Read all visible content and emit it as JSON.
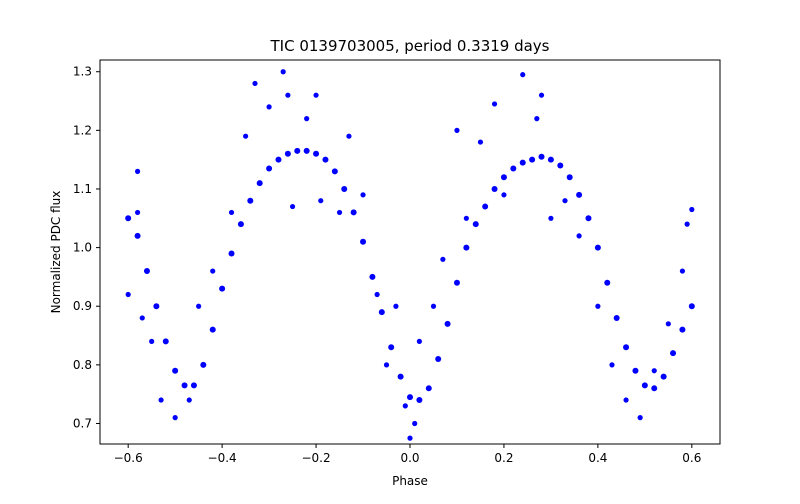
{
  "chart_data": {
    "type": "scatter",
    "title": "TIC 0139703005, period 0.3319 days",
    "xlabel": "Phase",
    "ylabel": "Normalized PDC flux",
    "xlim": [
      -0.66,
      0.66
    ],
    "ylim": [
      0.665,
      1.32
    ],
    "x_ticks": [
      {
        "value": -0.6,
        "label": "−0.6"
      },
      {
        "value": -0.4,
        "label": "−0.4"
      },
      {
        "value": -0.2,
        "label": "−0.2"
      },
      {
        "value": 0.0,
        "label": "0.0"
      },
      {
        "value": 0.2,
        "label": "0.2"
      },
      {
        "value": 0.4,
        "label": "0.4"
      },
      {
        "value": 0.6,
        "label": "0.6"
      }
    ],
    "y_ticks": [
      {
        "value": 0.7,
        "label": "0.7"
      },
      {
        "value": 0.8,
        "label": "0.8"
      },
      {
        "value": 0.9,
        "label": "0.9"
      },
      {
        "value": 1.0,
        "label": "1.0"
      },
      {
        "value": 1.1,
        "label": "1.1"
      },
      {
        "value": 1.2,
        "label": "1.2"
      },
      {
        "value": 1.3,
        "label": "1.3"
      }
    ],
    "grid": false,
    "legend": "none",
    "marker_color": "#0000ff",
    "series": [
      {
        "x": [
          -0.6,
          -0.58,
          -0.56,
          -0.54,
          -0.52,
          -0.5,
          -0.48,
          -0.46,
          -0.44,
          -0.42,
          -0.4,
          -0.38,
          -0.36,
          -0.34,
          -0.32,
          -0.3,
          -0.28,
          -0.26,
          -0.24,
          -0.22,
          -0.2,
          -0.18,
          -0.16,
          -0.14,
          -0.12,
          -0.1,
          -0.08,
          -0.06,
          -0.04,
          -0.02,
          0.0,
          0.02,
          0.04,
          0.06,
          0.08,
          0.1,
          0.12,
          0.14,
          0.16,
          0.18,
          0.2,
          0.22,
          0.24,
          0.26,
          0.28,
          0.3,
          0.32,
          0.34,
          0.36,
          0.38,
          0.4,
          0.42,
          0.44,
          0.46,
          0.48,
          0.5,
          0.52,
          0.54,
          0.56,
          0.58,
          0.6
        ],
        "y": [
          1.05,
          1.02,
          0.96,
          0.9,
          0.84,
          0.79,
          0.765,
          0.765,
          0.8,
          0.86,
          0.93,
          0.99,
          1.04,
          1.08,
          1.11,
          1.135,
          1.15,
          1.16,
          1.165,
          1.165,
          1.16,
          1.15,
          1.13,
          1.1,
          1.06,
          1.01,
          0.95,
          0.89,
          0.83,
          0.78,
          0.745,
          0.74,
          0.76,
          0.81,
          0.87,
          0.94,
          1.0,
          1.04,
          1.07,
          1.1,
          1.12,
          1.135,
          1.145,
          1.15,
          1.155,
          1.15,
          1.14,
          1.12,
          1.09,
          1.05,
          1.0,
          0.94,
          0.88,
          0.83,
          0.79,
          0.765,
          0.76,
          0.78,
          0.82,
          0.86,
          0.9
        ]
      }
    ],
    "outliers": [
      {
        "x": -0.58,
        "y": 1.13
      },
      {
        "x": -0.58,
        "y": 1.06
      },
      {
        "x": -0.6,
        "y": 0.92
      },
      {
        "x": -0.57,
        "y": 0.88
      },
      {
        "x": -0.55,
        "y": 0.84
      },
      {
        "x": -0.53,
        "y": 0.74
      },
      {
        "x": -0.5,
        "y": 0.71
      },
      {
        "x": -0.47,
        "y": 0.74
      },
      {
        "x": -0.45,
        "y": 0.9
      },
      {
        "x": -0.42,
        "y": 0.96
      },
      {
        "x": -0.38,
        "y": 1.06
      },
      {
        "x": -0.35,
        "y": 1.19
      },
      {
        "x": -0.33,
        "y": 1.28
      },
      {
        "x": -0.3,
        "y": 1.24
      },
      {
        "x": -0.27,
        "y": 1.3
      },
      {
        "x": -0.26,
        "y": 1.26
      },
      {
        "x": -0.25,
        "y": 1.07
      },
      {
        "x": -0.22,
        "y": 1.22
      },
      {
        "x": -0.2,
        "y": 1.26
      },
      {
        "x": -0.19,
        "y": 1.08
      },
      {
        "x": -0.15,
        "y": 1.06
      },
      {
        "x": -0.13,
        "y": 1.19
      },
      {
        "x": -0.1,
        "y": 1.09
      },
      {
        "x": -0.07,
        "y": 0.92
      },
      {
        "x": -0.05,
        "y": 0.8
      },
      {
        "x": -0.03,
        "y": 0.9
      },
      {
        "x": -0.01,
        "y": 0.73
      },
      {
        "x": 0.0,
        "y": 0.675
      },
      {
        "x": 0.01,
        "y": 0.7
      },
      {
        "x": 0.02,
        "y": 0.84
      },
      {
        "x": 0.05,
        "y": 0.9
      },
      {
        "x": 0.07,
        "y": 0.98
      },
      {
        "x": 0.1,
        "y": 1.2
      },
      {
        "x": 0.12,
        "y": 1.05
      },
      {
        "x": 0.15,
        "y": 1.18
      },
      {
        "x": 0.18,
        "y": 1.245
      },
      {
        "x": 0.2,
        "y": 1.09
      },
      {
        "x": 0.24,
        "y": 1.295
      },
      {
        "x": 0.27,
        "y": 1.22
      },
      {
        "x": 0.28,
        "y": 1.26
      },
      {
        "x": 0.3,
        "y": 1.05
      },
      {
        "x": 0.33,
        "y": 1.08
      },
      {
        "x": 0.36,
        "y": 1.02
      },
      {
        "x": 0.4,
        "y": 0.9
      },
      {
        "x": 0.43,
        "y": 0.8
      },
      {
        "x": 0.46,
        "y": 0.74
      },
      {
        "x": 0.49,
        "y": 0.71
      },
      {
        "x": 0.52,
        "y": 0.79
      },
      {
        "x": 0.55,
        "y": 0.87
      },
      {
        "x": 0.58,
        "y": 0.96
      },
      {
        "x": 0.59,
        "y": 1.04
      },
      {
        "x": 0.6,
        "y": 1.065
      }
    ]
  }
}
